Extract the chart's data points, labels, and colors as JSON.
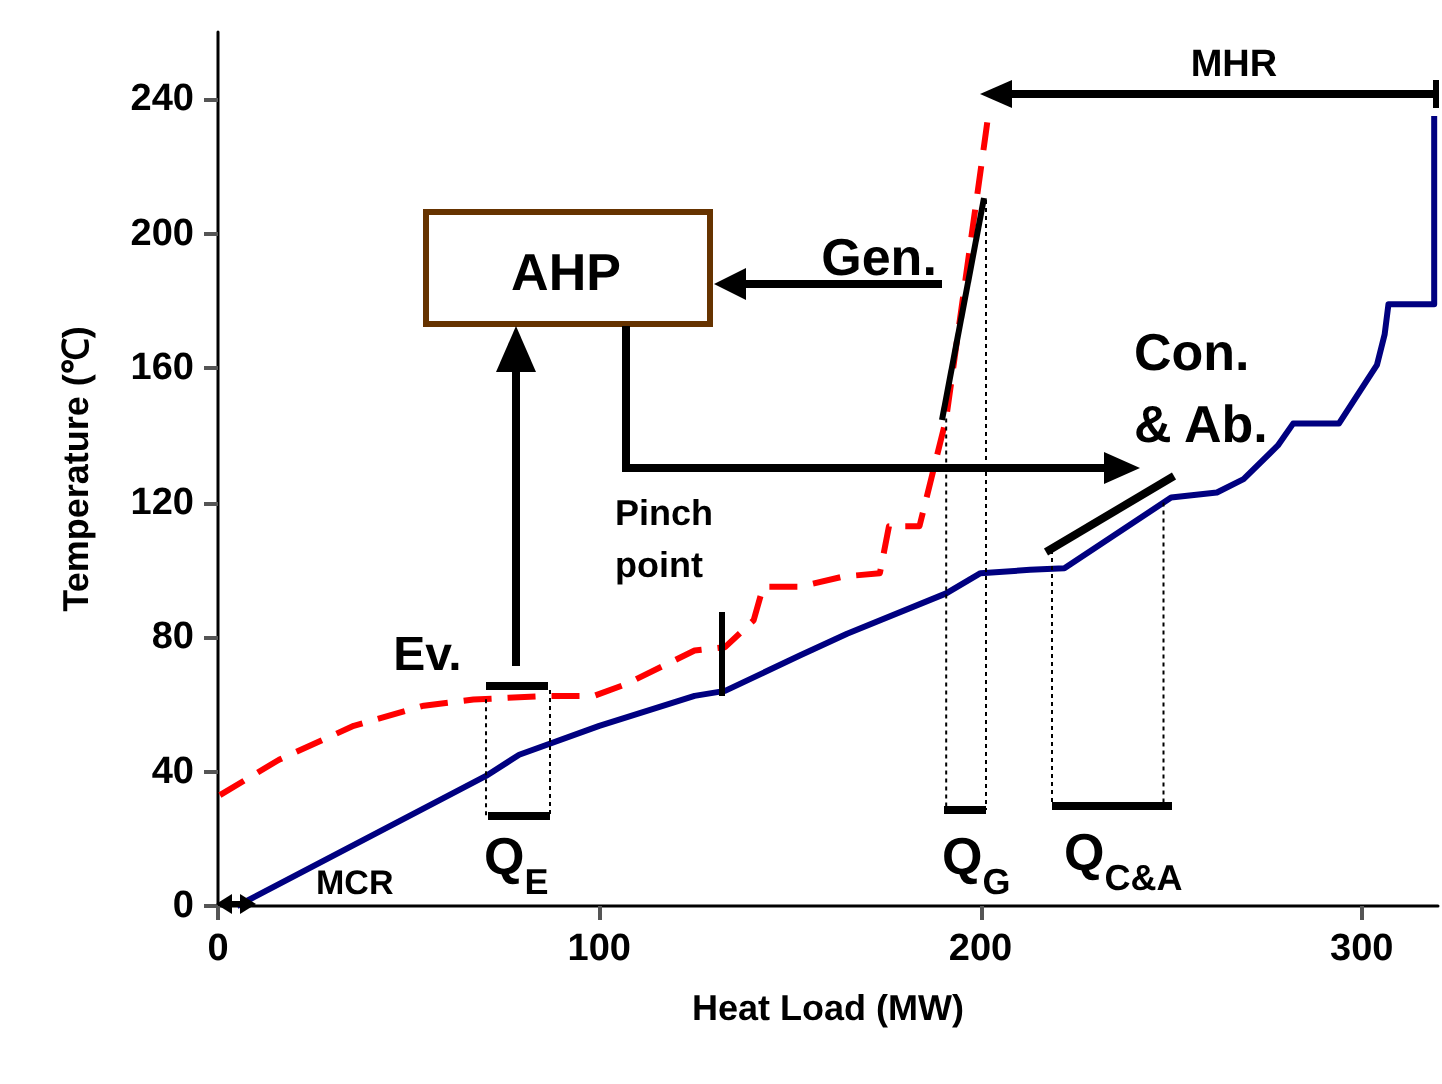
{
  "chart_data": {
    "type": "line",
    "xlabel": "Heat Load (MW)",
    "ylabel": "Temperature (℃)",
    "xlim": [
      0,
      320
    ],
    "xticks": [
      0,
      100,
      200,
      300
    ],
    "ylim": [
      0,
      260
    ],
    "yticks": [
      0,
      40,
      80,
      120,
      160,
      200,
      240
    ],
    "grid": false,
    "marker": "none",
    "series": [
      {
        "color": "#ff0000",
        "line_style": "dashed",
        "x": [
          0.5,
          16,
          35.6,
          54,
          67,
          86,
          98.6,
          107,
          125,
          133,
          140.5,
          143,
          152.6,
          164,
          173.6,
          176,
          184,
          191,
          201.4,
          202
        ],
        "values": [
          33,
          43.5,
          53.6,
          59.6,
          61.4,
          62.5,
          62.5,
          66,
          76,
          77,
          85,
          95,
          95,
          98,
          99,
          113,
          113,
          145,
          230,
          235
        ]
      },
      {
        "color": "#000080",
        "line_style": "solid",
        "x": [
          5,
          70.3,
          79,
          100,
          125,
          133,
          152.6,
          165,
          191,
          200,
          213,
          222,
          250,
          262,
          269,
          278,
          282,
          294,
          304,
          306,
          307,
          319,
          319
        ],
        "values": [
          0,
          38.7,
          45,
          53.6,
          62.5,
          64,
          74.5,
          81,
          93,
          99,
          100,
          100.5,
          121.5,
          123,
          127,
          137,
          143.5,
          143.5,
          161,
          170,
          179,
          179,
          235
        ]
      }
    ],
    "annotations": [
      "AHP",
      {
        "text": "Gen.",
        "x": 196,
        "y": 180
      },
      {
        "text": "Con. & Ab.",
        "x": 235,
        "y": 112
      },
      {
        "text": "Pinch point",
        "x": 133,
        "y": 64
      },
      {
        "text": "Ev.",
        "x": 79,
        "y": 66
      },
      "MCR",
      "MHR",
      {
        "text": "Q$_{E}$",
        "x": 70.3,
        "y": 61.5
      },
      {
        "text": "Q$_{G}$",
        "x": 191,
        "y": 145
      },
      {
        "text": "Q$_{C&A}$",
        "x": 248,
        "y": 120
      }
    ]
  }
}
